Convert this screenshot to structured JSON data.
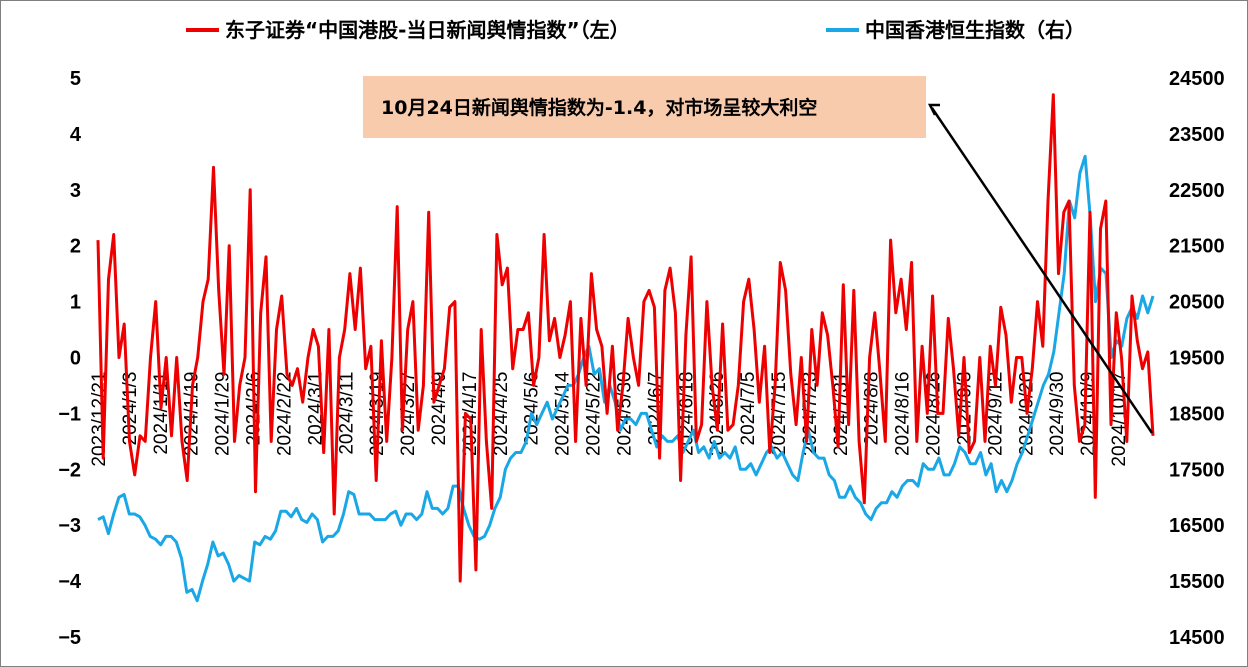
{
  "chart_data": {
    "type": "line",
    "colors": {
      "sentiment": "#ee0000",
      "hsi": "#1aa7e6",
      "annotation_bg": "#f8cbad"
    },
    "legend": [
      {
        "label": "东子证券“中国港股-当日新闻舆情指数”（左）",
        "color": "#ee0000"
      },
      {
        "label": "中国香港恒生指数（右）",
        "color": "#1aa7e6"
      }
    ],
    "annotation": "10月24日新闻舆情指数为-1.4，对市场呈较大利空",
    "y_left": {
      "min": -5,
      "max": 5,
      "ticks": [
        "5",
        "4",
        "3",
        "2",
        "1",
        "0",
        "−1",
        "−2",
        "−3",
        "−4",
        "−5"
      ]
    },
    "y_right": {
      "min": 14500,
      "max": 24500,
      "ticks": [
        "24500",
        "23500",
        "22500",
        "21500",
        "20500",
        "19500",
        "18500",
        "17500",
        "16500",
        "15500",
        "14500"
      ]
    },
    "x_ticks": [
      "2023/12/21",
      "2024/1/3",
      "2024/1/11",
      "2024/1/19",
      "2024/1/29",
      "2024/2/6",
      "2024/2/22",
      "2024/3/1",
      "2024/3/11",
      "2024/3/19",
      "2024/3/27",
      "2024/4/9",
      "2024/4/17",
      "2024/4/25",
      "2024/5/6",
      "2024/5/14",
      "2024/5/22",
      "2024/5/30",
      "2024/6/7",
      "2024/6/18",
      "2024/6/26",
      "2024/7/5",
      "2024/7/15",
      "2024/7/23",
      "2024/7/31",
      "2024/8/8",
      "2024/8/16",
      "2024/8/26",
      "2024/9/3",
      "2024/9/12",
      "2024/9/20",
      "2024/9/30",
      "2024/10/9",
      "2024/10/17"
    ],
    "series": [
      {
        "name": "东子证券“中国港股-当日新闻舆情指数”（左）",
        "axis": "left",
        "values": [
          2.1,
          -1.8,
          1.4,
          2.2,
          0,
          0.6,
          -1.5,
          -2.1,
          -1.4,
          -1.5,
          0,
          1,
          -0.9,
          0,
          -1.4,
          0,
          -1.5,
          -2.2,
          -0.5,
          0,
          1,
          1.4,
          3.4,
          1.2,
          -0.3,
          2,
          -1.5,
          -0.5,
          0,
          3,
          -2.4,
          0.8,
          1.8,
          -1.5,
          0.5,
          1.1,
          -0.3,
          -0.5,
          -0.2,
          -0.8,
          0,
          0.5,
          0.2,
          -1.7,
          0.5,
          -2.8,
          0,
          0.5,
          1.5,
          0.5,
          1.6,
          -0.2,
          0.2,
          -2.2,
          0.3,
          -1.5,
          0,
          2.7,
          -1.3,
          0.5,
          1,
          -1.3,
          -0.5,
          2.6,
          -0.8,
          -0.5,
          -0.2,
          0.9,
          1,
          -4,
          -1,
          -1.1,
          -3.8,
          0.5,
          -1.5,
          -2.7,
          2.2,
          1.3,
          1.6,
          -0.2,
          0.5,
          0.5,
          0.8,
          -0.5,
          0,
          2.2,
          0.3,
          0.7,
          0,
          0.4,
          1,
          -1.5,
          0.7,
          -0.5,
          1.5,
          0.5,
          0.2,
          -1,
          0.2,
          -1.3,
          -0.5,
          0.7,
          0,
          -0.5,
          1,
          1.2,
          0.9,
          -1.8,
          1.2,
          1.6,
          0.8,
          -2.2,
          0.4,
          1.8,
          -1.5,
          -1.2,
          1,
          -0.5,
          -1.3,
          0.6,
          -1.3,
          -1.2,
          -0.5,
          1,
          1.4,
          0.5,
          -0.8,
          0.2,
          -1.7,
          -0.5,
          1.7,
          1.2,
          -0.3,
          -1.2,
          0,
          -1.5,
          0.5,
          -0.5,
          0.8,
          0.4,
          -0.5,
          -1.6,
          1.3,
          -1.2,
          1.2,
          -1.5,
          -2.6,
          0,
          0.8,
          -0.3,
          -1.5,
          2.1,
          0.8,
          1.4,
          0.5,
          1.7,
          -1.5,
          0.2,
          -1,
          1.1,
          -1,
          -1,
          0.7,
          -0.2,
          -1.4,
          0,
          -1.7,
          -1.5,
          0,
          -1.5,
          0.2,
          -0.5,
          0.9,
          0.4,
          -0.8,
          0,
          0,
          -1,
          -0.2,
          1,
          0.2,
          2.8,
          4.7,
          1.5,
          2.6,
          2.8,
          -0.5,
          -1.5,
          -1.2,
          2.6,
          -2.5,
          2.3,
          2.8,
          -1.2,
          0.8,
          0,
          -1.5,
          1.1,
          0.3,
          -0.2,
          0.1,
          -1.4
        ]
      },
      {
        "name": "中国香港恒生指数（右）",
        "axis": "right",
        "values": [
          16600,
          16650,
          16350,
          16700,
          17000,
          17050,
          16700,
          16700,
          16650,
          16500,
          16300,
          16250,
          16150,
          16300,
          16300,
          16200,
          15900,
          15300,
          15350,
          15150,
          15500,
          15800,
          16200,
          15950,
          16000,
          15800,
          15500,
          15600,
          15550,
          15500,
          16200,
          16150,
          16300,
          16250,
          16400,
          16750,
          16750,
          16650,
          16800,
          16600,
          16550,
          16700,
          16600,
          16200,
          16300,
          16300,
          16400,
          16700,
          17100,
          17050,
          16700,
          16700,
          16700,
          16600,
          16600,
          16600,
          16700,
          16750,
          16500,
          16700,
          16700,
          16600,
          16700,
          17100,
          16800,
          16800,
          16700,
          16800,
          17200,
          17200,
          16800,
          16500,
          16300,
          16250,
          16300,
          16500,
          16800,
          17000,
          17500,
          17700,
          17800,
          17800,
          18000,
          18500,
          18300,
          18500,
          18700,
          18400,
          18600,
          18800,
          19000,
          19000,
          19200,
          19500,
          19700,
          19200,
          19300,
          18700,
          19000,
          18700,
          18200,
          18400,
          18400,
          18300,
          18500,
          18500,
          18200,
          17900,
          18100,
          18000,
          18000,
          18100,
          17800,
          18000,
          18200,
          17800,
          17900,
          17700,
          18000,
          17700,
          17800,
          17700,
          17900,
          17500,
          17500,
          17600,
          17400,
          17600,
          17800,
          17900,
          17700,
          17800,
          17600,
          17400,
          17300,
          17800,
          18200,
          17800,
          17700,
          17700,
          17400,
          17300,
          17000,
          17000,
          17200,
          17000,
          16900,
          16700,
          16600,
          16800,
          16900,
          16900,
          17100,
          17000,
          17200,
          17300,
          17300,
          17200,
          17600,
          17500,
          17500,
          17700,
          17400,
          17400,
          17600,
          17900,
          17800,
          17600,
          17600,
          17800,
          17400,
          17600,
          17100,
          17300,
          17100,
          17300,
          17600,
          17800,
          18100,
          18400,
          18700,
          19000,
          19200,
          19600,
          20300,
          21000,
          22300,
          22000,
          22800,
          23100,
          22000,
          20500,
          21100,
          21000,
          19500,
          19800,
          19700,
          20200,
          20400,
          20200,
          20600,
          20300,
          20600
        ]
      }
    ]
  }
}
